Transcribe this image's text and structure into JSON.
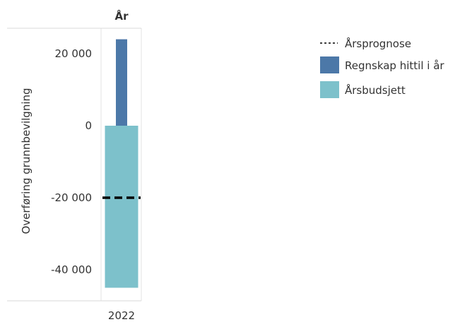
{
  "chart_data": {
    "type": "bar",
    "column_header": "År",
    "categories": [
      "2022"
    ],
    "ylabel": "Overføring grunnbevilgning",
    "xlabel": "",
    "ylim": [
      -45000,
      27000
    ],
    "yticks": [
      20000,
      0,
      -20000,
      -40000
    ],
    "ytick_labels": [
      "20 000",
      "0",
      "-20 000",
      "-40 000"
    ],
    "grid": false,
    "legend_position": "right",
    "series": [
      {
        "name": "Årsbudsjett",
        "mark": "wide-bar",
        "color": "#7dc1cb",
        "values": [
          -45000
        ]
      },
      {
        "name": "Regnskap hittil i år",
        "mark": "narrow-bar",
        "color": "#4c78a8",
        "values": [
          24000
        ]
      },
      {
        "name": "Årsprognose",
        "mark": "dashed-line",
        "color": "#000000",
        "values": [
          -20000
        ]
      }
    ],
    "legend": [
      {
        "label": "Årsprognose",
        "symbol": "dash",
        "color": "#000000"
      },
      {
        "label": "Regnskap hittil i år",
        "symbol": "square",
        "color": "#4c78a8"
      },
      {
        "label": "Årsbudsjett",
        "symbol": "square",
        "color": "#7dc1cb"
      }
    ]
  }
}
